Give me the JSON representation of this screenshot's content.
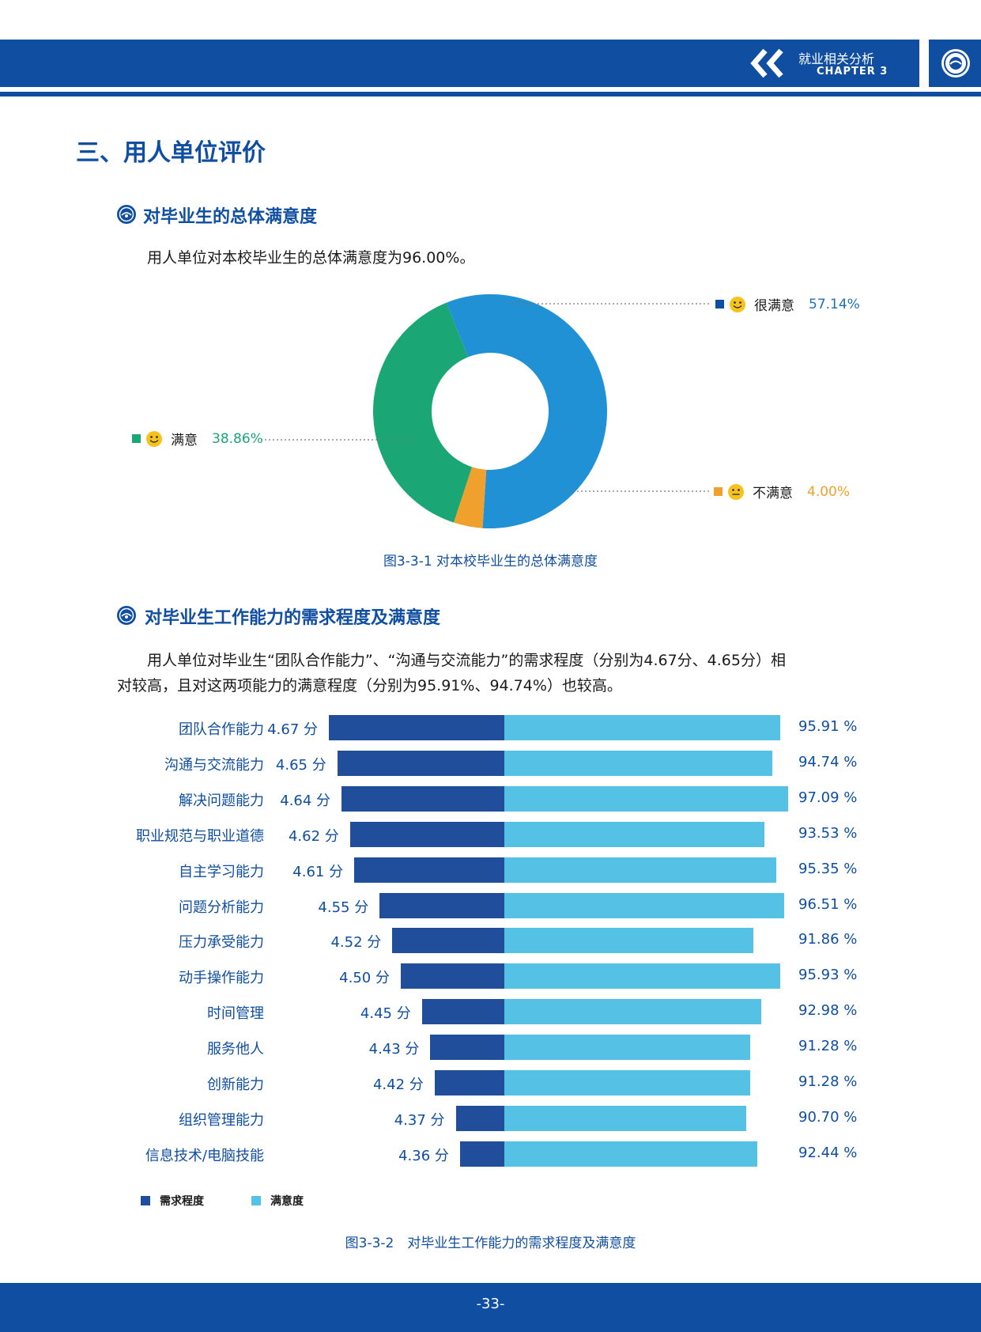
{
  "header": {
    "chapter_cn": "就业相关分析",
    "chapter_en": "CHAPTER 3",
    "chevron_icon": "double-chevron-left-icon",
    "logo_icon": "university-seal-icon"
  },
  "section_title": "三、用人单位评价",
  "sub1": {
    "title": "对毕业生的总体满意度",
    "paragraph": "用人单位对本校毕业生的总体满意度为96.00%。"
  },
  "chart_data": [
    {
      "type": "pie",
      "donut": true,
      "caption": "图3-3-1 对本校毕业生的总体满意度",
      "slices": [
        {
          "label": "很满意",
          "value": 57.14,
          "value_text": "57.14%",
          "color": "#2191d5",
          "icon": "smile-face-icon"
        },
        {
          "label": "满意",
          "value": 38.86,
          "value_text": "38.86%",
          "color": "#1aa675",
          "icon": "smile-face-icon"
        },
        {
          "label": "不满意",
          "value": 4.0,
          "value_text": "4.00%",
          "color": "#f0a02c",
          "icon": "neutral-face-icon"
        }
      ]
    },
    {
      "type": "bar",
      "caption": "图3-3-2　对毕业生工作能力的需求程度及满意度",
      "legend": [
        {
          "name": "需求程度",
          "color": "#214e9a"
        },
        {
          "name": "满意度",
          "color": "#55c1e4"
        }
      ],
      "categories": [
        "团队合作能力",
        "沟通与交流能力",
        "解决问题能力",
        "职业规范与职业道德",
        "自主学习能力",
        "问题分析能力",
        "压力承受能力",
        "动手操作能力",
        "时间管理",
        "服务他人",
        "创新能力",
        "组织管理能力",
        "信息技术/电脑技能"
      ],
      "series": [
        {
          "name": "需求程度",
          "values": [
            4.67,
            4.65,
            4.64,
            4.62,
            4.61,
            4.55,
            4.52,
            4.5,
            4.45,
            4.43,
            4.42,
            4.37,
            4.36
          ],
          "labels": [
            "4.67 分",
            "4.65 分",
            "4.64 分",
            "4.62 分",
            "4.61 分",
            "4.55 分",
            "4.52 分",
            "4.50 分",
            "4.45 分",
            "4.43 分",
            "4.42 分",
            "4.37 分",
            "4.36 分"
          ]
        },
        {
          "name": "满意度",
          "values": [
            95.91,
            94.74,
            97.09,
            93.53,
            95.35,
            96.51,
            91.86,
            95.93,
            92.98,
            91.28,
            91.28,
            90.7,
            92.44
          ],
          "labels": [
            "95.91 %",
            "94.74 %",
            "97.09 %",
            "93.53 %",
            "95.35 %",
            "96.51 %",
            "91.86 %",
            "95.93 %",
            "92.98 %",
            "91.28 %",
            "91.28 %",
            "90.70 %",
            "92.44 %"
          ]
        }
      ]
    }
  ],
  "sub2": {
    "title": "对毕业生工作能力的需求程度及满意度",
    "paragraph_line1": "用人单位对毕业生“团队合作能力”、“沟通与交流能力”的需求程度（分别为4.67分、4.65分）相",
    "paragraph_line2": "对较高，且对这两项能力的满意程度（分别为95.91%、94.74%）也较高。"
  },
  "footer": {
    "page": "-33-"
  }
}
